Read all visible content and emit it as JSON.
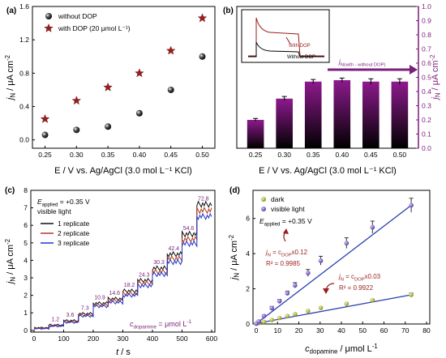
{
  "colors": {
    "without_dop": "#111111",
    "with_dop": "#9b1d1d",
    "bar_gradient_top": "#8e1a8e",
    "bar_gradient_bottom": "#000000",
    "purple_axis": "#7a1f7a",
    "rep1": "#111111",
    "rep2": "#b23a1e",
    "rep3": "#2233cc",
    "step_labels": "#7a1f7a",
    "dark_points": "#8a9a1a",
    "visible_points": "#5a3db0",
    "fit_line": "#2a3fb0",
    "annotation": "#9b1d1d"
  },
  "chart_data": [
    {
      "panel": "(a)",
      "type": "scatter",
      "xlabel": "E / V vs. Ag/AgCl (3.0 mol L⁻¹ KCl)",
      "ylabel": "jN / μA cm⁻²",
      "xlim": [
        0.23,
        0.52
      ],
      "ylim": [
        -0.1,
        1.6
      ],
      "xticks": [
        "0.25",
        "0.30",
        "0.35",
        "0.40",
        "0.45",
        "0.50"
      ],
      "yticks": [
        "0.0",
        "0.4",
        "0.8",
        "1.2",
        "1.6"
      ],
      "legend_position": "top-left",
      "series": [
        {
          "name": "without DOP",
          "marker": "sphere",
          "x": [
            0.25,
            0.3,
            0.35,
            0.4,
            0.45,
            0.5
          ],
          "y": [
            0.06,
            0.12,
            0.16,
            0.32,
            0.6,
            1.0
          ]
        },
        {
          "name": "with DOP (20 μmol L⁻¹)",
          "marker": "star",
          "x": [
            0.25,
            0.3,
            0.35,
            0.4,
            0.45,
            0.5
          ],
          "y": [
            0.25,
            0.47,
            0.63,
            0.8,
            1.07,
            1.46
          ]
        }
      ]
    },
    {
      "panel": "(b)",
      "type": "bar",
      "xlabel": "E / V vs. Ag/AgCl (3.0 mol L⁻¹ KCl)",
      "ylabel": "jN / μA cm⁻²",
      "categories": [
        "0.25",
        "0.30",
        "0.35",
        "0.40",
        "0.45",
        "0.50"
      ],
      "values": [
        0.2,
        0.35,
        0.47,
        0.48,
        0.47,
        0.47
      ],
      "errors": [
        0.01,
        0.015,
        0.015,
        0.015,
        0.02,
        0.02
      ],
      "ylim": [
        0,
        1.0
      ],
      "yticks": [
        "0.0",
        "0.1",
        "0.2",
        "0.3",
        "0.4",
        "0.5",
        "0.6",
        "0.7",
        "0.8",
        "0.9",
        "1.0"
      ],
      "arrow_label": "jN(with - without DOP)",
      "inset_labels": [
        "With DOP",
        "Without DOP"
      ]
    },
    {
      "panel": "(c)",
      "type": "line",
      "xlabel": "t / s",
      "ylabel": "jN / μA cm⁻²",
      "xlim": [
        0,
        600
      ],
      "ylim": [
        -0.1,
        8
      ],
      "xticks": [
        "0",
        "100",
        "200",
        "300",
        "400",
        "500",
        "600"
      ],
      "yticks": [
        "0",
        "1",
        "2",
        "3",
        "4",
        "5",
        "6",
        "7",
        "8"
      ],
      "condition_lines": [
        "E",
        "applied",
        " = +0.35 V",
        "visible light"
      ],
      "unit_label": "c",
      "unit_label_sub": "dopamine",
      "unit_label_rest": " = μmol L⁻¹",
      "step_times": [
        0,
        50,
        100,
        150,
        200,
        250,
        300,
        350,
        400,
        450,
        500,
        550,
        600
      ],
      "step_concentrations": [
        "1.2",
        "3.6",
        "7.3",
        "10.9",
        "14.6",
        "18.2",
        "24.3",
        "30.3",
        "42.4",
        "54.6",
        "72.8"
      ],
      "series": [
        {
          "name": "1 replicate",
          "levels": [
            0.15,
            0.3,
            0.55,
            0.95,
            1.55,
            1.8,
            2.25,
            2.85,
            3.55,
            4.35,
            5.5,
            7.2
          ]
        },
        {
          "name": "2 replicate",
          "levels": [
            0.12,
            0.27,
            0.5,
            0.88,
            1.45,
            1.7,
            2.1,
            2.7,
            3.35,
            4.1,
            5.2,
            6.85
          ]
        },
        {
          "name": "3 replicate",
          "levels": [
            0.1,
            0.24,
            0.46,
            0.82,
            1.38,
            1.6,
            2.0,
            2.55,
            3.2,
            3.9,
            4.95,
            6.5
          ]
        }
      ]
    },
    {
      "panel": "(d)",
      "type": "scatter",
      "xlabel": "c",
      "xlabel_sub": "dopamine",
      "xlabel_rest": " / μmol L⁻¹",
      "ylabel": "jN / μA cm⁻²",
      "xlim": [
        0,
        80
      ],
      "ylim": [
        0,
        7.6
      ],
      "xticks": [
        "0",
        "10",
        "20",
        "30",
        "40",
        "50",
        "60",
        "70",
        "80"
      ],
      "yticks": [
        "0",
        "2",
        "4",
        "6"
      ],
      "condition": "Eapplied = +0.35 V",
      "legend_position": "top-left",
      "series": [
        {
          "name": "dark",
          "x": [
            0,
            1.2,
            3.6,
            7.3,
            10.9,
            14.6,
            18.2,
            24.3,
            30.3,
            42.4,
            54.6,
            72.8
          ],
          "y": [
            0.03,
            0.06,
            0.12,
            0.23,
            0.34,
            0.45,
            0.56,
            0.74,
            0.92,
            1.15,
            1.35,
            1.66
          ],
          "errors": [
            0.02,
            0.02,
            0.03,
            0.03,
            0.03,
            0.04,
            0.04,
            0.04,
            0.05,
            0.05,
            0.06,
            0.1
          ]
        },
        {
          "name": "visible light",
          "x": [
            0,
            1.2,
            3.6,
            7.3,
            10.9,
            14.6,
            18.2,
            24.3,
            30.3,
            42.4,
            54.6,
            72.8
          ],
          "y": [
            0.02,
            0.15,
            0.45,
            0.9,
            1.3,
            1.75,
            2.2,
            2.9,
            3.6,
            4.6,
            5.5,
            6.75
          ],
          "errors": [
            0.03,
            0.05,
            0.08,
            0.1,
            0.1,
            0.12,
            0.15,
            0.2,
            0.25,
            0.3,
            0.35,
            0.4
          ]
        }
      ],
      "fits": [
        {
          "eq": "jN = cDOPx0.12",
          "r2": "R² = 0.9985"
        },
        {
          "eq": "jN = cDOPx0.03",
          "r2": "R² = 0.9922"
        }
      ]
    }
  ]
}
